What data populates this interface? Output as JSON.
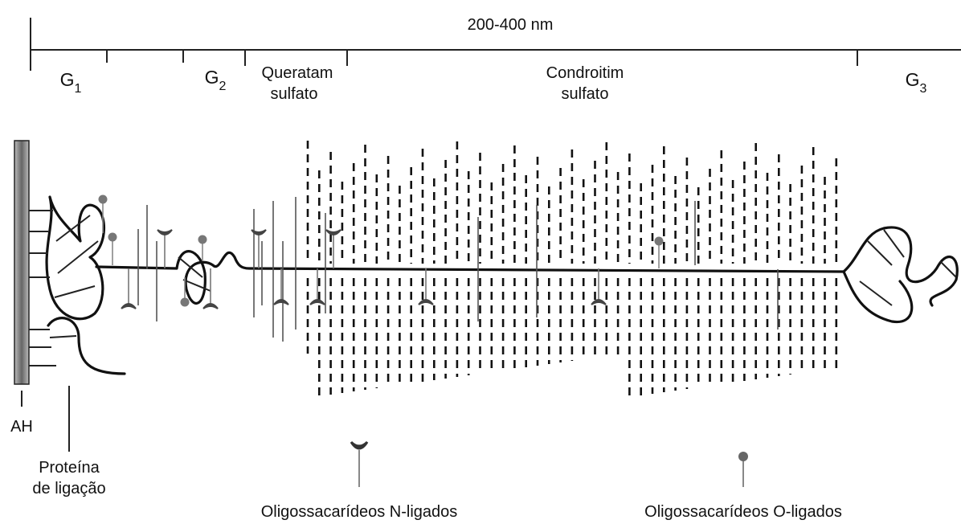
{
  "scale": {
    "label": "200-400 nm"
  },
  "regions": {
    "g1": {
      "letter": "G",
      "sub": "1"
    },
    "g2": {
      "letter": "G",
      "sub": "2"
    },
    "keratan": [
      "Queratam",
      "sulfato"
    ],
    "chondroitin": [
      "Condroitim",
      "sulfato"
    ],
    "g3": {
      "letter": "G",
      "sub": "3"
    }
  },
  "labels": {
    "ah": "AH",
    "link_protein": [
      "Proteína",
      "de ligação"
    ]
  },
  "legend": {
    "n_linked": "Oligossacarídeos N-ligados",
    "o_linked": "Oligossacarídeos O-ligados"
  }
}
